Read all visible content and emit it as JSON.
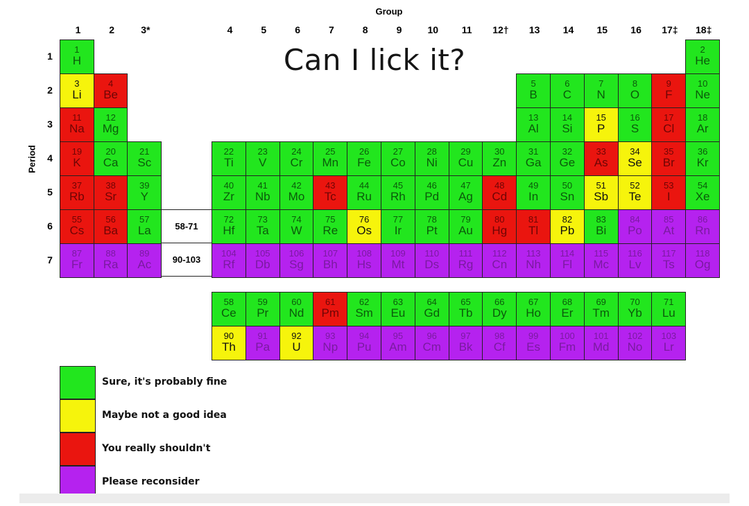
{
  "title": "Can I lick it?",
  "group_header": "Group",
  "period_header": "Period",
  "group_labels": [
    "1",
    "2",
    "3*",
    "4",
    "5",
    "6",
    "7",
    "8",
    "9",
    "10",
    "11",
    "12†",
    "13",
    "14",
    "15",
    "16",
    "17‡",
    "18‡"
  ],
  "period_labels": [
    "1",
    "2",
    "3",
    "4",
    "5",
    "6",
    "7"
  ],
  "placeholders": {
    "lanthanides": "58-71",
    "actinides": "90-103"
  },
  "categories": {
    "fine": {
      "label": "Sure, it's probably fine",
      "color": "#22e61e",
      "text": "#0b5a0b"
    },
    "maybe": {
      "label": "Maybe not a good idea",
      "color": "#f6f40c",
      "text": "#111111"
    },
    "shouldnt": {
      "label": "You really shouldn't",
      "color": "#ea150f",
      "text": "#6e0505"
    },
    "reconsider": {
      "label": "Please reconsider",
      "color": "#b522ef",
      "text": "#7a1aa0"
    }
  },
  "legend_order": [
    "fine",
    "maybe",
    "shouldnt",
    "reconsider"
  ],
  "elements": [
    [
      1,
      "H",
      "fine"
    ],
    [
      2,
      "He",
      "fine"
    ],
    [
      3,
      "Li",
      "maybe"
    ],
    [
      4,
      "Be",
      "shouldnt"
    ],
    [
      5,
      "B",
      "fine"
    ],
    [
      6,
      "C",
      "fine"
    ],
    [
      7,
      "N",
      "fine"
    ],
    [
      8,
      "O",
      "fine"
    ],
    [
      9,
      "F",
      "shouldnt"
    ],
    [
      10,
      "Ne",
      "fine"
    ],
    [
      11,
      "Na",
      "shouldnt"
    ],
    [
      12,
      "Mg",
      "fine"
    ],
    [
      13,
      "Al",
      "fine"
    ],
    [
      14,
      "Si",
      "fine"
    ],
    [
      15,
      "P",
      "maybe"
    ],
    [
      16,
      "S",
      "fine"
    ],
    [
      17,
      "Cl",
      "shouldnt"
    ],
    [
      18,
      "Ar",
      "fine"
    ],
    [
      19,
      "K",
      "shouldnt"
    ],
    [
      20,
      "Ca",
      "fine"
    ],
    [
      21,
      "Sc",
      "fine"
    ],
    [
      22,
      "Ti",
      "fine"
    ],
    [
      23,
      "V",
      "fine"
    ],
    [
      24,
      "Cr",
      "fine"
    ],
    [
      25,
      "Mn",
      "fine"
    ],
    [
      26,
      "Fe",
      "fine"
    ],
    [
      27,
      "Co",
      "fine"
    ],
    [
      28,
      "Ni",
      "fine"
    ],
    [
      29,
      "Cu",
      "fine"
    ],
    [
      30,
      "Zn",
      "fine"
    ],
    [
      31,
      "Ga",
      "fine"
    ],
    [
      32,
      "Ge",
      "fine"
    ],
    [
      33,
      "As",
      "shouldnt"
    ],
    [
      34,
      "Se",
      "maybe"
    ],
    [
      35,
      "Br",
      "shouldnt"
    ],
    [
      36,
      "Kr",
      "fine"
    ],
    [
      37,
      "Rb",
      "shouldnt"
    ],
    [
      38,
      "Sr",
      "shouldnt"
    ],
    [
      39,
      "Y",
      "fine"
    ],
    [
      40,
      "Zr",
      "fine"
    ],
    [
      41,
      "Nb",
      "fine"
    ],
    [
      42,
      "Mo",
      "fine"
    ],
    [
      43,
      "Tc",
      "shouldnt"
    ],
    [
      44,
      "Ru",
      "fine"
    ],
    [
      45,
      "Rh",
      "fine"
    ],
    [
      46,
      "Pd",
      "fine"
    ],
    [
      47,
      "Ag",
      "fine"
    ],
    [
      48,
      "Cd",
      "shouldnt"
    ],
    [
      49,
      "In",
      "fine"
    ],
    [
      50,
      "Sn",
      "fine"
    ],
    [
      51,
      "Sb",
      "maybe"
    ],
    [
      52,
      "Te",
      "maybe"
    ],
    [
      53,
      "I",
      "shouldnt"
    ],
    [
      54,
      "Xe",
      "fine"
    ],
    [
      55,
      "Cs",
      "shouldnt"
    ],
    [
      56,
      "Ba",
      "shouldnt"
    ],
    [
      57,
      "La",
      "fine"
    ],
    [
      58,
      "Ce",
      "fine"
    ],
    [
      59,
      "Pr",
      "fine"
    ],
    [
      60,
      "Nd",
      "fine"
    ],
    [
      61,
      "Pm",
      "shouldnt"
    ],
    [
      62,
      "Sm",
      "fine"
    ],
    [
      63,
      "Eu",
      "fine"
    ],
    [
      64,
      "Gd",
      "fine"
    ],
    [
      65,
      "Tb",
      "fine"
    ],
    [
      66,
      "Dy",
      "fine"
    ],
    [
      67,
      "Ho",
      "fine"
    ],
    [
      68,
      "Er",
      "fine"
    ],
    [
      69,
      "Tm",
      "fine"
    ],
    [
      70,
      "Yb",
      "fine"
    ],
    [
      71,
      "Lu",
      "fine"
    ],
    [
      72,
      "Hf",
      "fine"
    ],
    [
      73,
      "Ta",
      "fine"
    ],
    [
      74,
      "W",
      "fine"
    ],
    [
      75,
      "Re",
      "fine"
    ],
    [
      76,
      "Os",
      "maybe"
    ],
    [
      77,
      "Ir",
      "fine"
    ],
    [
      78,
      "Pt",
      "fine"
    ],
    [
      79,
      "Au",
      "fine"
    ],
    [
      80,
      "Hg",
      "shouldnt"
    ],
    [
      81,
      "Tl",
      "shouldnt"
    ],
    [
      82,
      "Pb",
      "maybe"
    ],
    [
      83,
      "Bi",
      "fine"
    ],
    [
      84,
      "Po",
      "reconsider"
    ],
    [
      85,
      "At",
      "reconsider"
    ],
    [
      86,
      "Rn",
      "reconsider"
    ],
    [
      87,
      "Fr",
      "reconsider"
    ],
    [
      88,
      "Ra",
      "reconsider"
    ],
    [
      89,
      "Ac",
      "reconsider"
    ],
    [
      90,
      "Th",
      "maybe"
    ],
    [
      91,
      "Pa",
      "reconsider"
    ],
    [
      92,
      "U",
      "maybe"
    ],
    [
      93,
      "Np",
      "reconsider"
    ],
    [
      94,
      "Pu",
      "reconsider"
    ],
    [
      95,
      "Am",
      "reconsider"
    ],
    [
      96,
      "Cm",
      "reconsider"
    ],
    [
      97,
      "Bk",
      "reconsider"
    ],
    [
      98,
      "Cf",
      "reconsider"
    ],
    [
      99,
      "Es",
      "reconsider"
    ],
    [
      100,
      "Fm",
      "reconsider"
    ],
    [
      101,
      "Md",
      "reconsider"
    ],
    [
      102,
      "No",
      "reconsider"
    ],
    [
      103,
      "Lr",
      "reconsider"
    ],
    [
      104,
      "Rf",
      "reconsider"
    ],
    [
      105,
      "Db",
      "reconsider"
    ],
    [
      106,
      "Sg",
      "reconsider"
    ],
    [
      107,
      "Bh",
      "reconsider"
    ],
    [
      108,
      "Hs",
      "reconsider"
    ],
    [
      109,
      "Mt",
      "reconsider"
    ],
    [
      110,
      "Ds",
      "reconsider"
    ],
    [
      111,
      "Rg",
      "reconsider"
    ],
    [
      112,
      "Cn",
      "reconsider"
    ],
    [
      113,
      "Nh",
      "reconsider"
    ],
    [
      114,
      "Fl",
      "reconsider"
    ],
    [
      115,
      "Mc",
      "reconsider"
    ],
    [
      116,
      "Lv",
      "reconsider"
    ],
    [
      117,
      "Ts",
      "reconsider"
    ],
    [
      118,
      "Og",
      "reconsider"
    ]
  ]
}
